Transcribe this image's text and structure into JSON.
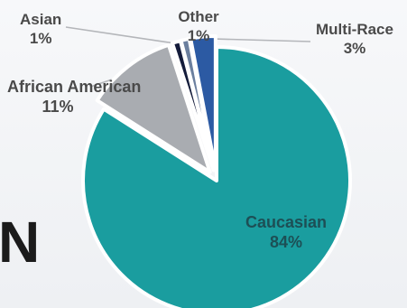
{
  "background_fragment": "N",
  "colors": {
    "background": "#f4f5f7",
    "label_text": "#4a4a4a",
    "inner_label_text": "#1d4f55",
    "slice_border": "#ffffff"
  },
  "chart_data": {
    "type": "pie",
    "start_angle_deg": 0,
    "direction": "clockwise",
    "slices": [
      {
        "label": "Caucasian",
        "value": 84,
        "value_label": "84%",
        "color": "#1a9d9f",
        "exploded": false
      },
      {
        "label": "African American",
        "value": 11,
        "value_label": "11%",
        "color": "#a9acb1",
        "exploded": true
      },
      {
        "label": "Asian",
        "value": 1,
        "value_label": "1%",
        "color": "#141c3b",
        "exploded": true
      },
      {
        "label": "Other",
        "value": 1,
        "value_label": "1%",
        "color": "#6b7f9e",
        "exploded": true
      },
      {
        "label": "Multi-Race",
        "value": 3,
        "value_label": "3%",
        "color": "#2c5aa3",
        "exploded": true
      }
    ]
  }
}
